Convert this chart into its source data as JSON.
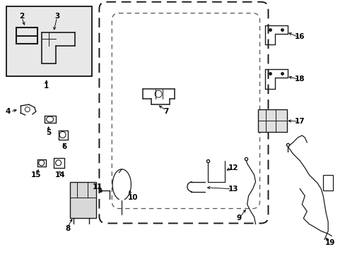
{
  "background_color": "#ffffff",
  "figsize": [
    4.89,
    3.6
  ],
  "dpi": 100,
  "line_color": "#1a1a1a",
  "label_fontsize": 7.5,
  "inset_bg": "#f0f0f0",
  "door_color": "#1a1a1a",
  "parts_color": "#1a1a1a"
}
